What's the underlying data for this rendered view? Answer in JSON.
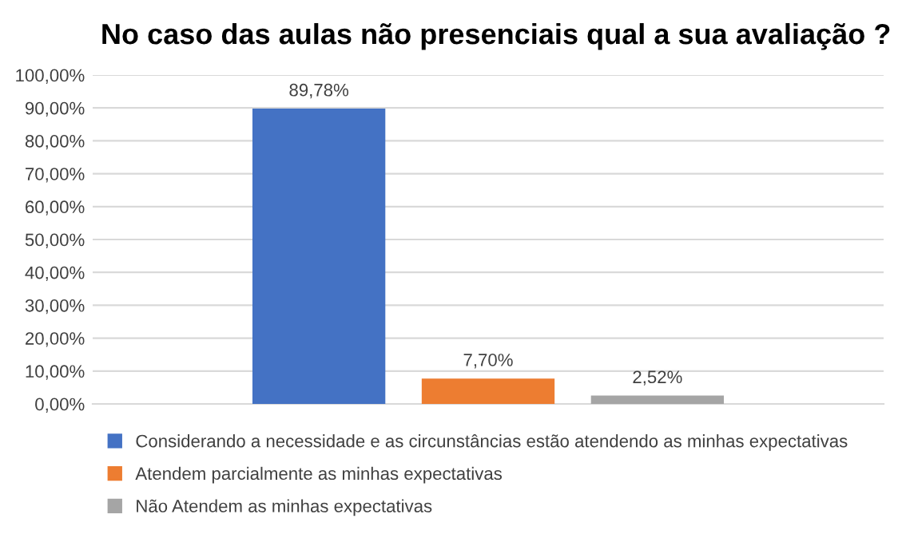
{
  "chart_data": {
    "type": "bar",
    "title": "No caso das aulas não presenciais qual a sua avaliação ?",
    "categories": [
      null
    ],
    "series": [
      {
        "name": "Considerando a necessidade e as circunstâncias estão atendendo as minhas expectativas",
        "color": "#4472c4",
        "values": [
          89.78
        ],
        "value_labels": [
          "89,78%"
        ]
      },
      {
        "name": "Atendem parcialmente as minhas expectativas",
        "color": "#ed7d31",
        "values": [
          7.7
        ],
        "value_labels": [
          "7,70%"
        ]
      },
      {
        "name": "Não Atendem as minhas expectativas",
        "color": "#a5a5a5",
        "values": [
          2.52
        ],
        "value_labels": [
          "2,52%"
        ]
      }
    ],
    "ylim": [
      0,
      100
    ],
    "yticks": [
      {
        "value": 0,
        "label": "0,00%"
      },
      {
        "value": 10,
        "label": "10,00%"
      },
      {
        "value": 20,
        "label": "20,00%"
      },
      {
        "value": 30,
        "label": "30,00%"
      },
      {
        "value": 40,
        "label": "40,00%"
      },
      {
        "value": 50,
        "label": "50,00%"
      },
      {
        "value": 60,
        "label": "60,00%"
      },
      {
        "value": 70,
        "label": "70,00%"
      },
      {
        "value": 80,
        "label": "80,00%"
      },
      {
        "value": 90,
        "label": "90,00%"
      },
      {
        "value": 100,
        "label": "100,00%"
      }
    ],
    "grid": "y",
    "legend": "bottom"
  }
}
